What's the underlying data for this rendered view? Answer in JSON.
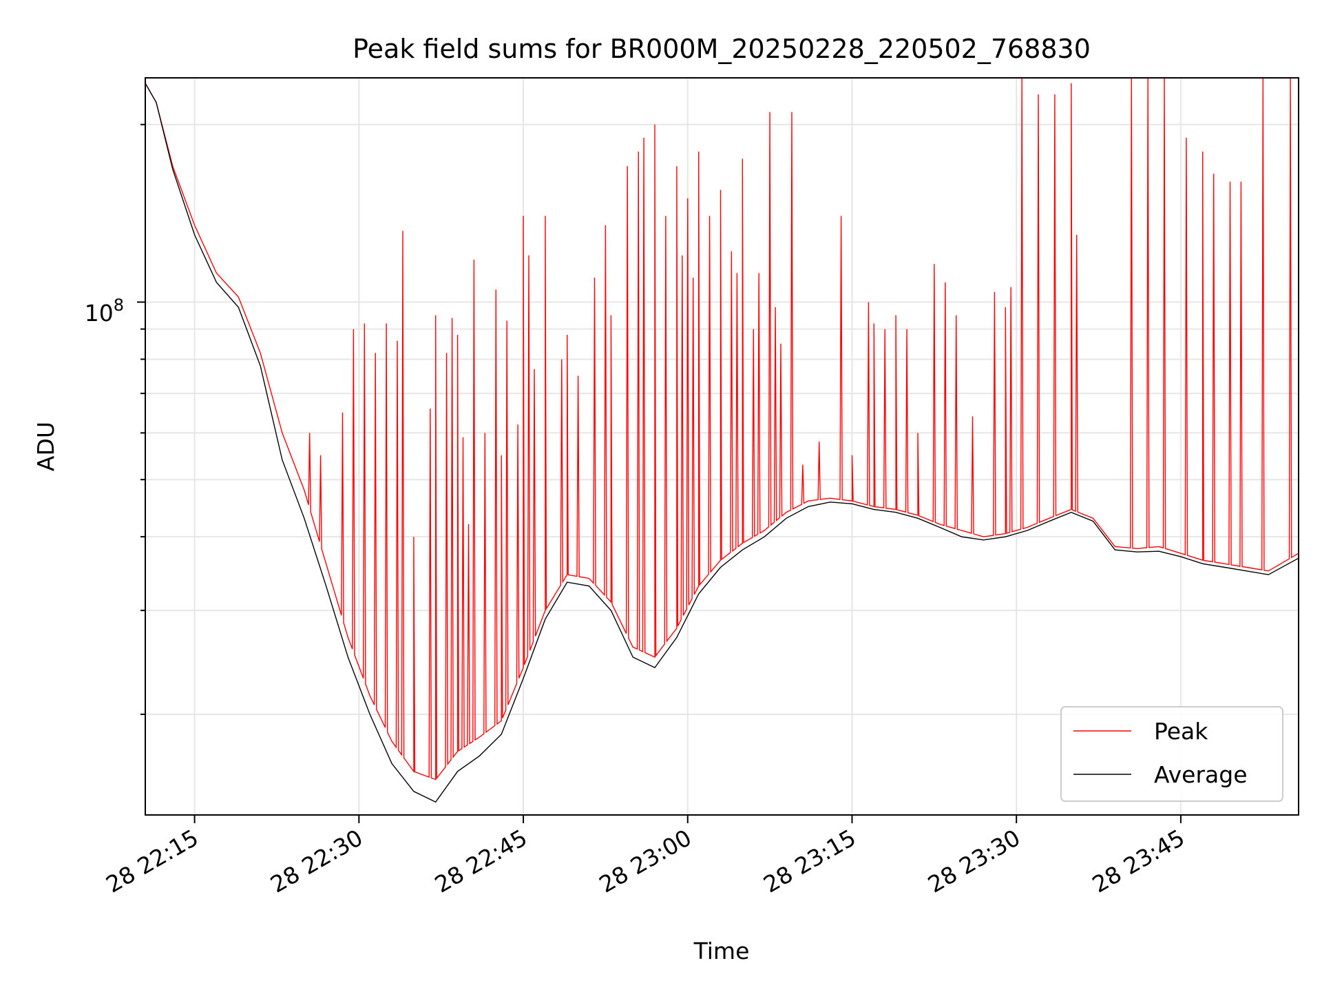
{
  "chart_data": {
    "type": "line",
    "title": "Peak field sums for BR000M_20250228_220502_768830",
    "xlabel": "Time",
    "ylabel": "ADU",
    "yscale": "log",
    "ylim": [
      13500000,
      240000000
    ],
    "xlim": [
      "2025-02-28 22:10:30",
      "2025-02-28 23:55:45"
    ],
    "x_ticks": [
      "2025-02-28 22:15:00",
      "2025-02-28 22:30:00",
      "2025-02-28 22:45:00",
      "2025-02-28 23:00:00",
      "2025-02-28 23:15:00",
      "2025-02-28 23:30:00",
      "2025-02-28 23:45:00"
    ],
    "x_tick_labels": [
      "28 22:15",
      "28 22:30",
      "28 22:45",
      "28 23:00",
      "28 23:15",
      "28 23:30",
      "28 23:45"
    ],
    "y_major_tick_label": {
      "base": "10",
      "exponent": "8",
      "value": 100000000
    },
    "grid": true,
    "legend_position": "lower-right",
    "series": [
      {
        "name": "Peak",
        "color": "#ff0000",
        "baseline": [
          [
            "2025-02-28 22:10:30",
            235000000
          ],
          [
            "2025-02-28 22:11:30",
            218000000
          ],
          [
            "2025-02-28 22:13:00",
            170000000
          ],
          [
            "2025-02-28 22:15:00",
            135000000
          ],
          [
            "2025-02-28 22:17:00",
            112000000
          ],
          [
            "2025-02-28 22:19:00",
            102000000
          ],
          [
            "2025-02-28 22:21:00",
            82000000
          ],
          [
            "2025-02-28 22:23:00",
            60000000
          ],
          [
            "2025-02-28 22:25:00",
            48000000
          ],
          [
            "2025-02-28 22:27:00",
            36000000
          ],
          [
            "2025-02-28 22:29:00",
            27000000
          ],
          [
            "2025-02-28 22:31:00",
            21500000
          ],
          [
            "2025-02-28 22:33:00",
            18000000
          ],
          [
            "2025-02-28 22:35:00",
            16000000
          ],
          [
            "2025-02-28 22:37:00",
            15500000
          ],
          [
            "2025-02-28 22:39:00",
            17300000
          ],
          [
            "2025-02-28 22:41:00",
            18300000
          ],
          [
            "2025-02-28 22:43:00",
            19500000
          ],
          [
            "2025-02-28 22:45:00",
            24000000
          ],
          [
            "2025-02-28 22:47:00",
            30000000
          ],
          [
            "2025-02-28 22:49:00",
            34500000
          ],
          [
            "2025-02-28 22:51:00",
            34000000
          ],
          [
            "2025-02-28 22:53:00",
            31000000
          ],
          [
            "2025-02-28 22:55:00",
            26000000
          ],
          [
            "2025-02-28 22:57:00",
            25000000
          ],
          [
            "2025-02-28 22:59:00",
            28000000
          ],
          [
            "2025-02-28 23:01:00",
            33000000
          ],
          [
            "2025-02-28 23:03:00",
            36500000
          ],
          [
            "2025-02-28 23:05:00",
            39000000
          ],
          [
            "2025-02-28 23:07:00",
            41000000
          ],
          [
            "2025-02-28 23:09:00",
            44000000
          ],
          [
            "2025-02-28 23:11:00",
            46000000
          ],
          [
            "2025-02-28 23:13:00",
            46500000
          ],
          [
            "2025-02-28 23:15:00",
            46000000
          ],
          [
            "2025-02-28 23:17:00",
            45000000
          ],
          [
            "2025-02-28 23:19:00",
            44500000
          ],
          [
            "2025-02-28 23:21:00",
            43500000
          ],
          [
            "2025-02-28 23:23:00",
            42000000
          ],
          [
            "2025-02-28 23:25:00",
            41000000
          ],
          [
            "2025-02-28 23:27:00",
            40000000
          ],
          [
            "2025-02-28 23:29:00",
            40500000
          ],
          [
            "2025-02-28 23:31:00",
            41500000
          ],
          [
            "2025-02-28 23:33:00",
            43000000
          ],
          [
            "2025-02-28 23:35:00",
            44500000
          ],
          [
            "2025-02-28 23:37:00",
            43000000
          ],
          [
            "2025-02-28 23:39:00",
            38500000
          ],
          [
            "2025-02-28 23:41:00",
            38200000
          ],
          [
            "2025-02-28 23:43:00",
            38500000
          ],
          [
            "2025-02-28 23:45:00",
            37500000
          ],
          [
            "2025-02-28 23:47:00",
            36500000
          ],
          [
            "2025-02-28 23:49:00",
            36000000
          ],
          [
            "2025-02-28 23:51:00",
            35500000
          ],
          [
            "2025-02-28 23:53:00",
            35000000
          ],
          [
            "2025-02-28 23:55:45",
            37500000
          ]
        ],
        "spikes": [
          [
            "2025-02-28 22:25:30",
            60000000
          ],
          [
            "2025-02-28 22:26:30",
            55000000
          ],
          [
            "2025-02-28 22:28:30",
            65000000
          ],
          [
            "2025-02-28 22:29:30",
            90000000
          ],
          [
            "2025-02-28 22:30:30",
            92000000
          ],
          [
            "2025-02-28 22:31:30",
            82000000
          ],
          [
            "2025-02-28 22:32:30",
            92000000
          ],
          [
            "2025-02-28 22:33:30",
            86000000
          ],
          [
            "2025-02-28 22:34:00",
            132000000
          ],
          [
            "2025-02-28 22:35:00",
            40000000
          ],
          [
            "2025-02-28 22:36:30",
            66000000
          ],
          [
            "2025-02-28 22:37:00",
            95000000
          ],
          [
            "2025-02-28 22:38:00",
            82000000
          ],
          [
            "2025-02-28 22:38:30",
            94000000
          ],
          [
            "2025-02-28 22:39:00",
            88000000
          ],
          [
            "2025-02-28 22:39:30",
            59000000
          ],
          [
            "2025-02-28 22:40:00",
            42000000
          ],
          [
            "2025-02-28 22:40:30",
            118000000
          ],
          [
            "2025-02-28 22:41:30",
            60000000
          ],
          [
            "2025-02-28 22:42:30",
            105000000
          ],
          [
            "2025-02-28 22:43:00",
            55000000
          ],
          [
            "2025-02-28 22:43:30",
            93000000
          ],
          [
            "2025-02-28 22:44:30",
            62000000
          ],
          [
            "2025-02-28 22:45:00",
            140000000
          ],
          [
            "2025-02-28 22:45:30",
            120000000
          ],
          [
            "2025-02-28 22:46:00",
            77000000
          ],
          [
            "2025-02-28 22:47:00",
            140000000
          ],
          [
            "2025-02-28 22:48:30",
            80000000
          ],
          [
            "2025-02-28 22:49:00",
            88000000
          ],
          [
            "2025-02-28 22:50:00",
            75000000
          ],
          [
            "2025-02-28 22:51:30",
            110000000
          ],
          [
            "2025-02-28 22:52:30",
            135000000
          ],
          [
            "2025-02-28 22:53:00",
            95000000
          ],
          [
            "2025-02-28 22:54:30",
            170000000
          ],
          [
            "2025-02-28 22:55:30",
            180000000
          ],
          [
            "2025-02-28 22:56:00",
            190000000
          ],
          [
            "2025-02-28 22:57:00",
            200000000
          ],
          [
            "2025-02-28 22:58:00",
            140000000
          ],
          [
            "2025-02-28 22:59:00",
            170000000
          ],
          [
            "2025-02-28 22:59:30",
            120000000
          ],
          [
            "2025-02-28 23:00:00",
            150000000
          ],
          [
            "2025-02-28 23:00:30",
            110000000
          ],
          [
            "2025-02-28 23:01:00",
            180000000
          ],
          [
            "2025-02-28 23:02:00",
            140000000
          ],
          [
            "2025-02-28 23:03:00",
            155000000
          ],
          [
            "2025-02-28 23:04:00",
            122000000
          ],
          [
            "2025-02-28 23:04:30",
            112000000
          ],
          [
            "2025-02-28 23:05:00",
            175000000
          ],
          [
            "2025-02-28 23:06:00",
            90000000
          ],
          [
            "2025-02-28 23:06:30",
            112000000
          ],
          [
            "2025-02-28 23:07:30",
            210000000
          ],
          [
            "2025-02-28 23:08:00",
            98000000
          ],
          [
            "2025-02-28 23:08:30",
            85000000
          ],
          [
            "2025-02-28 23:09:30",
            210000000
          ],
          [
            "2025-02-28 23:10:30",
            53000000
          ],
          [
            "2025-02-28 23:12:00",
            58000000
          ],
          [
            "2025-02-28 23:14:00",
            140000000
          ],
          [
            "2025-02-28 23:15:00",
            55000000
          ],
          [
            "2025-02-28 23:16:30",
            100000000
          ],
          [
            "2025-02-28 23:17:00",
            92000000
          ],
          [
            "2025-02-28 23:18:00",
            90000000
          ],
          [
            "2025-02-28 23:19:00",
            95000000
          ],
          [
            "2025-02-28 23:20:00",
            90000000
          ],
          [
            "2025-02-28 23:21:00",
            60000000
          ],
          [
            "2025-02-28 23:22:30",
            116000000
          ],
          [
            "2025-02-28 23:23:30",
            108000000
          ],
          [
            "2025-02-28 23:24:30",
            95000000
          ],
          [
            "2025-02-28 23:26:00",
            64000000
          ],
          [
            "2025-02-28 23:28:00",
            104000000
          ],
          [
            "2025-02-28 23:29:00",
            98000000
          ],
          [
            "2025-02-28 23:29:30",
            106000000
          ],
          [
            "2025-02-28 23:30:30",
            240000000
          ],
          [
            "2025-02-28 23:32:00",
            225000000
          ],
          [
            "2025-02-28 23:33:30",
            225000000
          ],
          [
            "2025-02-28 23:35:00",
            235000000
          ],
          [
            "2025-02-28 23:35:30",
            130000000
          ],
          [
            "2025-02-28 23:40:30",
            240000000
          ],
          [
            "2025-02-28 23:42:00",
            240000000
          ],
          [
            "2025-02-28 23:43:30",
            240000000
          ],
          [
            "2025-02-28 23:45:30",
            190000000
          ],
          [
            "2025-02-28 23:47:00",
            180000000
          ],
          [
            "2025-02-28 23:48:00",
            165000000
          ],
          [
            "2025-02-28 23:49:30",
            160000000
          ],
          [
            "2025-02-28 23:50:30",
            160000000
          ],
          [
            "2025-02-28 23:52:30",
            240000000
          ],
          [
            "2025-02-28 23:55:00",
            240000000
          ]
        ]
      },
      {
        "name": "Average",
        "color": "#000000",
        "data": [
          [
            "2025-02-28 22:10:30",
            235000000
          ],
          [
            "2025-02-28 22:11:30",
            218000000
          ],
          [
            "2025-02-28 22:13:00",
            168000000
          ],
          [
            "2025-02-28 22:15:00",
            130000000
          ],
          [
            "2025-02-28 22:17:00",
            108000000
          ],
          [
            "2025-02-28 22:19:00",
            98000000
          ],
          [
            "2025-02-28 22:21:00",
            78000000
          ],
          [
            "2025-02-28 22:23:00",
            54000000
          ],
          [
            "2025-02-28 22:25:00",
            43000000
          ],
          [
            "2025-02-28 22:27:00",
            33000000
          ],
          [
            "2025-02-28 22:29:00",
            25000000
          ],
          [
            "2025-02-28 22:31:00",
            20000000
          ],
          [
            "2025-02-28 22:33:00",
            16500000
          ],
          [
            "2025-02-28 22:35:00",
            14800000
          ],
          [
            "2025-02-28 22:37:00",
            14200000
          ],
          [
            "2025-02-28 22:39:00",
            16000000
          ],
          [
            "2025-02-28 22:41:00",
            17000000
          ],
          [
            "2025-02-28 22:43:00",
            18500000
          ],
          [
            "2025-02-28 22:45:00",
            23000000
          ],
          [
            "2025-02-28 22:47:00",
            29000000
          ],
          [
            "2025-02-28 22:49:00",
            33500000
          ],
          [
            "2025-02-28 22:51:00",
            33000000
          ],
          [
            "2025-02-28 22:53:00",
            30000000
          ],
          [
            "2025-02-28 22:55:00",
            25000000
          ],
          [
            "2025-02-28 22:57:00",
            24000000
          ],
          [
            "2025-02-28 22:59:00",
            27000000
          ],
          [
            "2025-02-28 23:01:00",
            32000000
          ],
          [
            "2025-02-28 23:03:00",
            35500000
          ],
          [
            "2025-02-28 23:05:00",
            38000000
          ],
          [
            "2025-02-28 23:07:00",
            40000000
          ],
          [
            "2025-02-28 23:09:00",
            43000000
          ],
          [
            "2025-02-28 23:11:00",
            45000000
          ],
          [
            "2025-02-28 23:13:00",
            45800000
          ],
          [
            "2025-02-28 23:15:00",
            45500000
          ],
          [
            "2025-02-28 23:17:00",
            44500000
          ],
          [
            "2025-02-28 23:19:00",
            44000000
          ],
          [
            "2025-02-28 23:21:00",
            43000000
          ],
          [
            "2025-02-28 23:23:00",
            41500000
          ],
          [
            "2025-02-28 23:25:00",
            40000000
          ],
          [
            "2025-02-28 23:27:00",
            39500000
          ],
          [
            "2025-02-28 23:29:00",
            40000000
          ],
          [
            "2025-02-28 23:31:00",
            41000000
          ],
          [
            "2025-02-28 23:33:00",
            42500000
          ],
          [
            "2025-02-28 23:35:00",
            44000000
          ],
          [
            "2025-02-28 23:37:00",
            42500000
          ],
          [
            "2025-02-28 23:39:00",
            38000000
          ],
          [
            "2025-02-28 23:41:00",
            37700000
          ],
          [
            "2025-02-28 23:43:00",
            37800000
          ],
          [
            "2025-02-28 23:45:00",
            37000000
          ],
          [
            "2025-02-28 23:47:00",
            36000000
          ],
          [
            "2025-02-28 23:49:00",
            35500000
          ],
          [
            "2025-02-28 23:51:00",
            35000000
          ],
          [
            "2025-02-28 23:53:00",
            34500000
          ],
          [
            "2025-02-28 23:55:45",
            36800000
          ]
        ]
      }
    ]
  }
}
